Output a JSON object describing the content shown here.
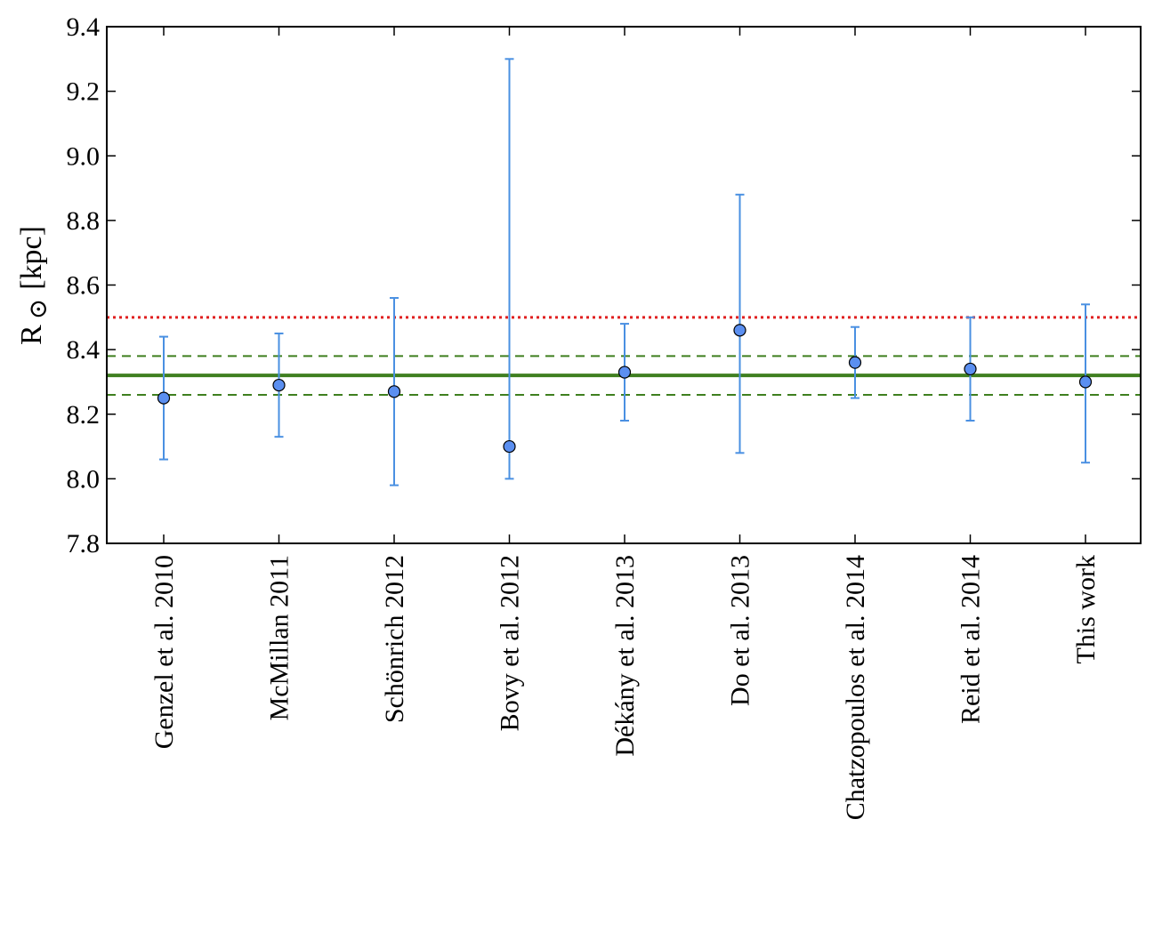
{
  "chart_data": {
    "type": "scatter",
    "title": "",
    "xlabel": "",
    "ylabel": "R",
    "ylabel_symbol": "⊙",
    "ylabel_unit": "[kpc]",
    "ylim": [
      7.8,
      9.4
    ],
    "yticks": [
      "7.8",
      "8.0",
      "8.2",
      "8.4",
      "8.6",
      "8.8",
      "9.0",
      "9.2",
      "9.4"
    ],
    "grid": false,
    "legend": "none",
    "categories": [
      "Genzel et al. 2010",
      "McMillan 2011",
      "Schönrich 2012",
      "Bovy et al. 2012",
      "Dékány et al. 2013",
      "Do et al. 2013",
      "Chatzopoulos et al. 2014",
      "Reid et al. 2014",
      "This work"
    ],
    "points": [
      {
        "value": 8.25,
        "err_low": 8.06,
        "err_high": 8.44
      },
      {
        "value": 8.29,
        "err_low": 8.13,
        "err_high": 8.45
      },
      {
        "value": 8.27,
        "err_low": 7.98,
        "err_high": 8.56
      },
      {
        "value": 8.1,
        "err_low": 8.0,
        "err_high": 9.3
      },
      {
        "value": 8.33,
        "err_low": 8.18,
        "err_high": 8.48
      },
      {
        "value": 8.46,
        "err_low": 8.08,
        "err_high": 8.88
      },
      {
        "value": 8.36,
        "err_low": 8.25,
        "err_high": 8.47
      },
      {
        "value": 8.34,
        "err_low": 8.18,
        "err_high": 8.5
      },
      {
        "value": 8.3,
        "err_low": 8.05,
        "err_high": 8.54
      }
    ],
    "reference_lines": [
      {
        "value": 8.5,
        "style": "dotted",
        "color": "#e02020"
      },
      {
        "value": 8.38,
        "style": "dashed",
        "color": "#3f7f1f"
      },
      {
        "value": 8.32,
        "style": "solid",
        "color": "#3f7f1f"
      },
      {
        "value": 8.26,
        "style": "dashed",
        "color": "#3f7f1f"
      }
    ],
    "colors": {
      "marker_fill": "#5b8ff0",
      "error_bar": "#4a90e2",
      "axes": "#000000"
    }
  }
}
